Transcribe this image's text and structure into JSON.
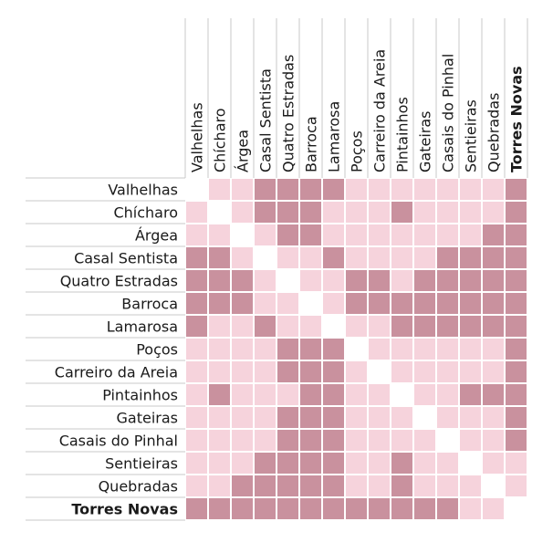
{
  "chart_data": {
    "type": "heatmap",
    "title": "",
    "columns": [
      "Valhelhas",
      "Chícharo",
      "Árgea",
      "Casal Sentista",
      "Quatro Estradas",
      "Barroca",
      "Lamarosa",
      "Poços",
      "Carreiro da Areia",
      "Pintainhos",
      "Gateiras",
      "Casais do Pinhal",
      "Sentieiras",
      "Quebradas",
      "Torres Novas"
    ],
    "rows": [
      "Valhelhas",
      "Chícharo",
      "Árgea",
      "Casal Sentista",
      "Quatro Estradas",
      "Barroca",
      "Lamarosa",
      "Poços",
      "Carreiro da Areia",
      "Pintainhos",
      "Gateiras",
      "Casais do Pinhal",
      "Sentieiras",
      "Quebradas",
      "Torres Novas"
    ],
    "highlighted_label": "Torres Novas",
    "levels": {
      "0": "empty (diagonal)",
      "1": "light",
      "2": "dark"
    },
    "colors": {
      "0": "#ffffff",
      "1": "#f6d3dc",
      "2": "#c9919e",
      "grid": "#ffffff",
      "row_rule": "#c8c8c8"
    },
    "values": [
      [
        0,
        1,
        1,
        2,
        2,
        2,
        2,
        1,
        1,
        1,
        1,
        1,
        1,
        1,
        2
      ],
      [
        1,
        0,
        1,
        2,
        2,
        2,
        1,
        1,
        1,
        2,
        1,
        1,
        1,
        1,
        2
      ],
      [
        1,
        1,
        0,
        1,
        2,
        2,
        1,
        1,
        1,
        1,
        1,
        1,
        1,
        2,
        2
      ],
      [
        2,
        2,
        1,
        0,
        1,
        1,
        2,
        1,
        1,
        1,
        1,
        2,
        2,
        2,
        2
      ],
      [
        2,
        2,
        2,
        1,
        0,
        1,
        1,
        2,
        2,
        1,
        2,
        2,
        2,
        2,
        2
      ],
      [
        2,
        2,
        2,
        1,
        1,
        0,
        1,
        2,
        2,
        2,
        2,
        2,
        2,
        2,
        2
      ],
      [
        2,
        1,
        1,
        2,
        1,
        1,
        0,
        1,
        1,
        2,
        2,
        2,
        2,
        2,
        2
      ],
      [
        1,
        1,
        1,
        1,
        2,
        2,
        2,
        0,
        1,
        1,
        1,
        1,
        1,
        1,
        2
      ],
      [
        1,
        1,
        1,
        1,
        2,
        2,
        2,
        1,
        0,
        1,
        1,
        1,
        1,
        1,
        2
      ],
      [
        1,
        2,
        1,
        1,
        1,
        2,
        2,
        1,
        1,
        0,
        1,
        1,
        2,
        2,
        2
      ],
      [
        1,
        1,
        1,
        1,
        2,
        2,
        2,
        1,
        1,
        1,
        0,
        1,
        1,
        1,
        2
      ],
      [
        1,
        1,
        1,
        1,
        2,
        2,
        2,
        1,
        1,
        1,
        1,
        0,
        1,
        1,
        2
      ],
      [
        1,
        1,
        1,
        2,
        2,
        2,
        2,
        1,
        1,
        2,
        1,
        1,
        0,
        1,
        1
      ],
      [
        1,
        1,
        2,
        2,
        2,
        2,
        2,
        1,
        1,
        2,
        1,
        1,
        1,
        0,
        1
      ],
      [
        2,
        2,
        2,
        2,
        2,
        2,
        2,
        2,
        2,
        2,
        2,
        2,
        1,
        1,
        0
      ]
    ]
  }
}
